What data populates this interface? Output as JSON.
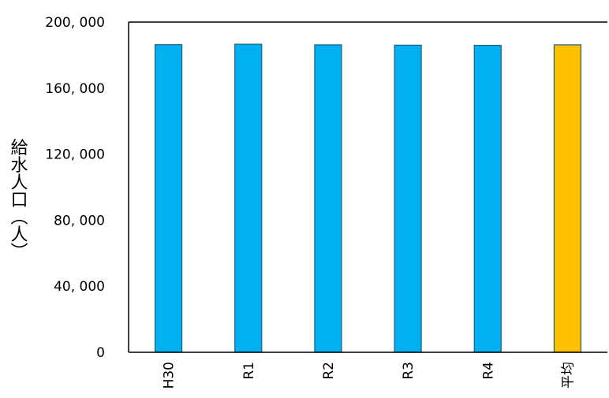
{
  "chart_data": {
    "type": "bar",
    "categories": [
      "H30",
      "R1",
      "R2",
      "R3",
      "R4",
      "平均"
    ],
    "values": [
      186300,
      186600,
      186200,
      186000,
      185900,
      186200
    ],
    "highlight_category": "平均",
    "ylabel": "給水人口（人）",
    "ylim": [
      0,
      200000
    ],
    "yticks": [
      0,
      40000,
      80000,
      120000,
      160000,
      200000
    ],
    "ytick_labels": [
      "0",
      "40, 000",
      "80, 000",
      "120, 000",
      "160, 000",
      "200, 000"
    ],
    "grid": false,
    "colors": {
      "bar": "#00b0f0",
      "highlight": "#ffc000",
      "bar_edge": "#1f5f7a"
    }
  }
}
